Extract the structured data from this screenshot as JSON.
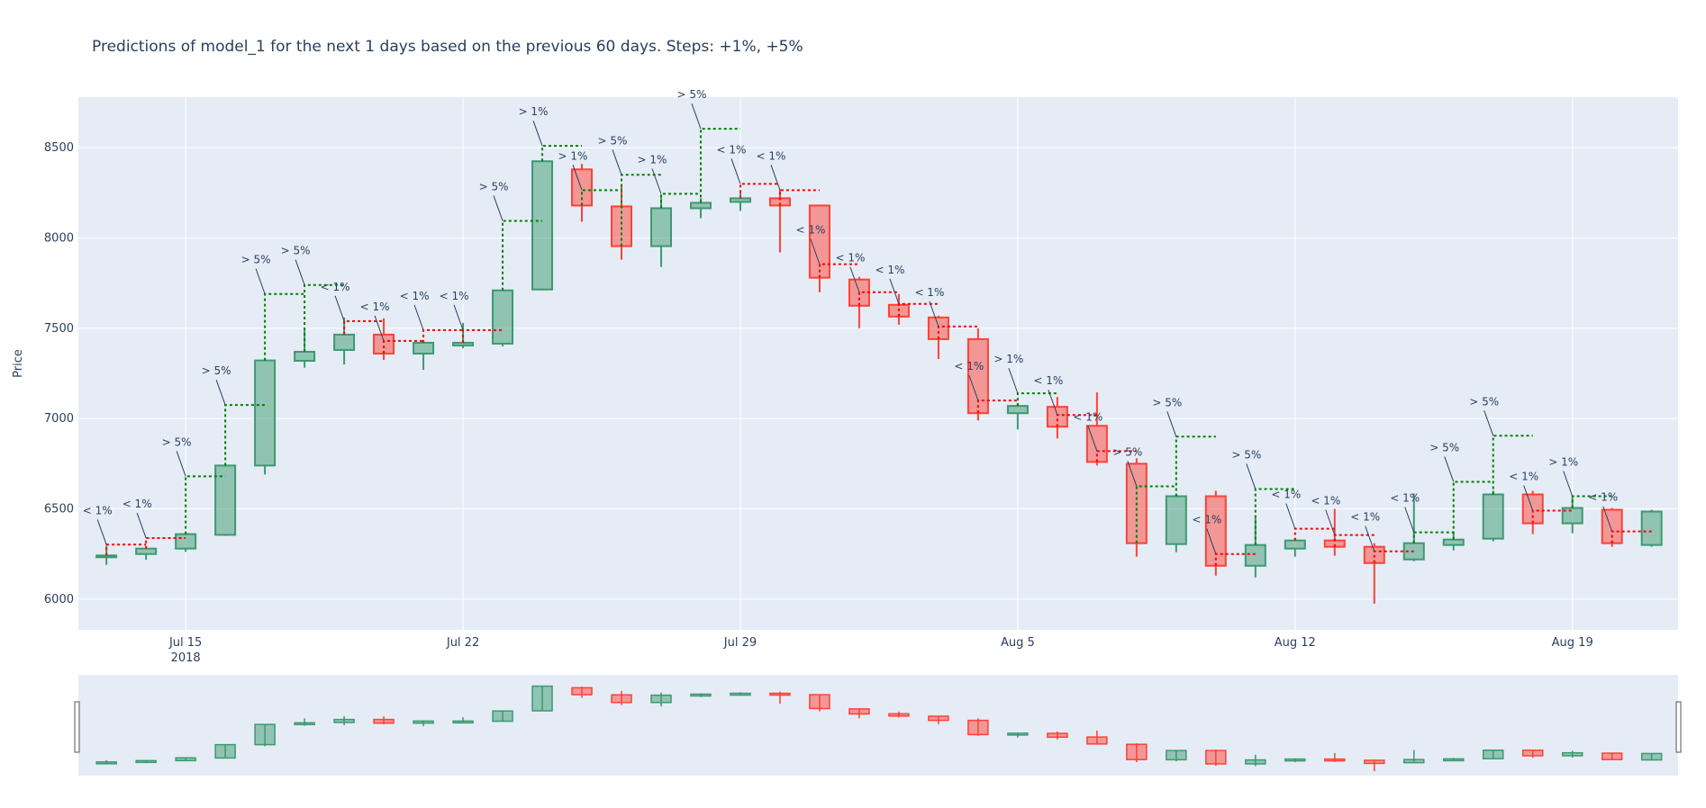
{
  "chart_data": {
    "type": "candlestick",
    "title": "Predictions of model_1 for the next 1 days based on the previous 60 days. Steps: +1%, +5%",
    "ylabel": "Price",
    "xlabel": "",
    "ylim": [
      5830,
      8780
    ],
    "y_ticks": [
      6000,
      6500,
      7000,
      7500,
      8000,
      8500
    ],
    "x_ticks": [
      {
        "date": "2018-07-15",
        "label": "Jul 15",
        "sublabel": "2018"
      },
      {
        "date": "2018-07-22",
        "label": "Jul 22",
        "sublabel": ""
      },
      {
        "date": "2018-07-29",
        "label": "Jul 29",
        "sublabel": ""
      },
      {
        "date": "2018-08-05",
        "label": "Aug 5",
        "sublabel": ""
      },
      {
        "date": "2018-08-12",
        "label": "Aug 12",
        "sublabel": ""
      },
      {
        "date": "2018-08-19",
        "label": "Aug 19",
        "sublabel": ""
      }
    ],
    "xlim": [
      "2018-07-12 07:00",
      "2018-08-21 16:00"
    ],
    "colors": {
      "increasing": "#3d9970",
      "decreasing": "#ff4136",
      "background": "#e5ecf6",
      "grid": "#ffffff",
      "up_prediction": "#008000",
      "down_prediction": "#ff0000"
    },
    "grid": true,
    "rangeslider": true,
    "candles": [
      {
        "date": "2018-07-13",
        "open": 6236,
        "high": 6296,
        "low": 6190,
        "close": 6242
      },
      {
        "date": "2018-07-14",
        "open": 6250,
        "high": 6286,
        "low": 6218,
        "close": 6280
      },
      {
        "date": "2018-07-15",
        "open": 6280,
        "high": 6372,
        "low": 6262,
        "close": 6360
      },
      {
        "date": "2018-07-16",
        "open": 6356,
        "high": 6745,
        "low": 6350,
        "close": 6740
      },
      {
        "date": "2018-07-17",
        "open": 6740,
        "high": 7330,
        "low": 6690,
        "close": 7322
      },
      {
        "date": "2018-07-18",
        "open": 7320,
        "high": 7500,
        "low": 7282,
        "close": 7370
      },
      {
        "date": "2018-07-19",
        "open": 7380,
        "high": 7560,
        "low": 7300,
        "close": 7465
      },
      {
        "date": "2018-07-20",
        "open": 7465,
        "high": 7555,
        "low": 7325,
        "close": 7360
      },
      {
        "date": "2018-07-21",
        "open": 7360,
        "high": 7435,
        "low": 7270,
        "close": 7420
      },
      {
        "date": "2018-07-22",
        "open": 7405,
        "high": 7530,
        "low": 7390,
        "close": 7420
      },
      {
        "date": "2018-07-23",
        "open": 7415,
        "high": 7720,
        "low": 7400,
        "close": 7710
      },
      {
        "date": "2018-07-24",
        "open": 7715,
        "high": 8435,
        "low": 7710,
        "close": 8425
      },
      {
        "date": "2018-07-25",
        "open": 8380,
        "high": 8410,
        "low": 8090,
        "close": 8180
      },
      {
        "date": "2018-07-26",
        "open": 8175,
        "high": 8290,
        "low": 7880,
        "close": 7955
      },
      {
        "date": "2018-07-27",
        "open": 7955,
        "high": 8240,
        "low": 7840,
        "close": 8165
      },
      {
        "date": "2018-07-28",
        "open": 8165,
        "high": 8220,
        "low": 8110,
        "close": 8195
      },
      {
        "date": "2018-07-29",
        "open": 8200,
        "high": 8250,
        "low": 8150,
        "close": 8220
      },
      {
        "date": "2018-07-30",
        "open": 8220,
        "high": 8270,
        "low": 7920,
        "close": 8180
      },
      {
        "date": "2018-07-31",
        "open": 8180,
        "high": 8185,
        "low": 7700,
        "close": 7780
      },
      {
        "date": "2018-08-01",
        "open": 7770,
        "high": 7785,
        "low": 7500,
        "close": 7625
      },
      {
        "date": "2018-08-02",
        "open": 7630,
        "high": 7690,
        "low": 7520,
        "close": 7565
      },
      {
        "date": "2018-08-03",
        "open": 7560,
        "high": 7570,
        "low": 7330,
        "close": 7440
      },
      {
        "date": "2018-08-04",
        "open": 7440,
        "high": 7500,
        "low": 6990,
        "close": 7030
      },
      {
        "date": "2018-08-05",
        "open": 7030,
        "high": 7085,
        "low": 6940,
        "close": 7070
      },
      {
        "date": "2018-08-06",
        "open": 7065,
        "high": 7120,
        "low": 6890,
        "close": 6955
      },
      {
        "date": "2018-08-07",
        "open": 6960,
        "high": 7145,
        "low": 6740,
        "close": 6760
      },
      {
        "date": "2018-08-08",
        "open": 6750,
        "high": 6780,
        "low": 6235,
        "close": 6310
      },
      {
        "date": "2018-08-09",
        "open": 6305,
        "high": 6580,
        "low": 6260,
        "close": 6570
      },
      {
        "date": "2018-08-10",
        "open": 6570,
        "high": 6600,
        "low": 6130,
        "close": 6185
      },
      {
        "date": "2018-08-11",
        "open": 6185,
        "high": 6450,
        "low": 6120,
        "close": 6300
      },
      {
        "date": "2018-08-12",
        "open": 6280,
        "high": 6340,
        "low": 6235,
        "close": 6325
      },
      {
        "date": "2018-08-13",
        "open": 6325,
        "high": 6500,
        "low": 6240,
        "close": 6290
      },
      {
        "date": "2018-08-14",
        "open": 6290,
        "high": 6310,
        "low": 5975,
        "close": 6200
      },
      {
        "date": "2018-08-15",
        "open": 6220,
        "high": 6585,
        "low": 6210,
        "close": 6310
      },
      {
        "date": "2018-08-16",
        "open": 6300,
        "high": 6360,
        "low": 6270,
        "close": 6330
      },
      {
        "date": "2018-08-17",
        "open": 6335,
        "high": 6600,
        "low": 6320,
        "close": 6580
      },
      {
        "date": "2018-08-18",
        "open": 6580,
        "high": 6600,
        "low": 6360,
        "close": 6420
      },
      {
        "date": "2018-08-19",
        "open": 6420,
        "high": 6565,
        "low": 6365,
        "close": 6505
      },
      {
        "date": "2018-08-20",
        "open": 6495,
        "high": 6505,
        "low": 6290,
        "close": 6310
      },
      {
        "date": "2018-08-21",
        "open": 6300,
        "high": 6495,
        "low": 6290,
        "close": 6485
      }
    ],
    "predictions": [
      {
        "start": "2018-07-13",
        "value": 6302,
        "label": "< 1%",
        "direction": "down"
      },
      {
        "start": "2018-07-14",
        "value": 6338,
        "label": "< 1%",
        "direction": "down"
      },
      {
        "start": "2018-07-15",
        "value": 6680,
        "label": "> 5%",
        "direction": "up"
      },
      {
        "start": "2018-07-16",
        "value": 7075,
        "label": "> 5%",
        "direction": "up"
      },
      {
        "start": "2018-07-17",
        "value": 7690,
        "label": "> 5%",
        "direction": "up"
      },
      {
        "start": "2018-07-18",
        "value": 7740,
        "label": "> 5%",
        "direction": "up"
      },
      {
        "start": "2018-07-19",
        "value": 7540,
        "label": "< 1%",
        "direction": "down"
      },
      {
        "start": "2018-07-20",
        "value": 7430,
        "label": "< 1%",
        "direction": "down"
      },
      {
        "start": "2018-07-21",
        "value": 7490,
        "label": "< 1%",
        "direction": "down"
      },
      {
        "start": "2018-07-22",
        "value": 7490,
        "label": "< 1%",
        "direction": "down"
      },
      {
        "start": "2018-07-23",
        "value": 8095,
        "label": "> 5%",
        "direction": "up"
      },
      {
        "start": "2018-07-24",
        "value": 8510,
        "label": "> 1%",
        "direction": "up"
      },
      {
        "start": "2018-07-25",
        "value": 8265,
        "label": "> 1%",
        "direction": "up"
      },
      {
        "start": "2018-07-26",
        "value": 8350,
        "label": "> 5%",
        "direction": "up"
      },
      {
        "start": "2018-07-27",
        "value": 8245,
        "label": "> 1%",
        "direction": "up"
      },
      {
        "start": "2018-07-28",
        "value": 8605,
        "label": "> 5%",
        "direction": "up"
      },
      {
        "start": "2018-07-29",
        "value": 8300,
        "label": "< 1%",
        "direction": "down"
      },
      {
        "start": "2018-07-30",
        "value": 8265,
        "label": "< 1%",
        "direction": "down"
      },
      {
        "start": "2018-07-31",
        "value": 7855,
        "label": "< 1%",
        "direction": "down"
      },
      {
        "start": "2018-08-01",
        "value": 7700,
        "label": "< 1%",
        "direction": "down"
      },
      {
        "start": "2018-08-02",
        "value": 7635,
        "label": "< 1%",
        "direction": "down"
      },
      {
        "start": "2018-08-03",
        "value": 7510,
        "label": "< 1%",
        "direction": "down"
      },
      {
        "start": "2018-08-04",
        "value": 7100,
        "label": "< 1%",
        "direction": "down"
      },
      {
        "start": "2018-08-05",
        "value": 7140,
        "label": "> 1%",
        "direction": "up"
      },
      {
        "start": "2018-08-06",
        "value": 7020,
        "label": "< 1%",
        "direction": "down"
      },
      {
        "start": "2018-08-07",
        "value": 6820,
        "label": "< 1%",
        "direction": "down"
      },
      {
        "start": "2018-08-08",
        "value": 6625,
        "label": "> 5%",
        "direction": "up"
      },
      {
        "start": "2018-08-09",
        "value": 6900,
        "label": "> 5%",
        "direction": "up"
      },
      {
        "start": "2018-08-10",
        "value": 6250,
        "label": "< 1%",
        "direction": "down"
      },
      {
        "start": "2018-08-11",
        "value": 6610,
        "label": "> 5%",
        "direction": "up"
      },
      {
        "start": "2018-08-12",
        "value": 6390,
        "label": "< 1%",
        "direction": "down"
      },
      {
        "start": "2018-08-13",
        "value": 6355,
        "label": "< 1%",
        "direction": "down"
      },
      {
        "start": "2018-08-14",
        "value": 6265,
        "label": "< 1%",
        "direction": "down"
      },
      {
        "start": "2018-08-15",
        "value": 6370,
        "label": "< 1%",
        "direction": "up"
      },
      {
        "start": "2018-08-16",
        "value": 6650,
        "label": "> 5%",
        "direction": "up"
      },
      {
        "start": "2018-08-17",
        "value": 6905,
        "label": "> 5%",
        "direction": "up"
      },
      {
        "start": "2018-08-18",
        "value": 6490,
        "label": "< 1%",
        "direction": "down"
      },
      {
        "start": "2018-08-19",
        "value": 6570,
        "label": "> 1%",
        "direction": "up"
      },
      {
        "start": "2018-08-20",
        "value": 6375,
        "label": "< 1%",
        "direction": "down"
      }
    ]
  }
}
